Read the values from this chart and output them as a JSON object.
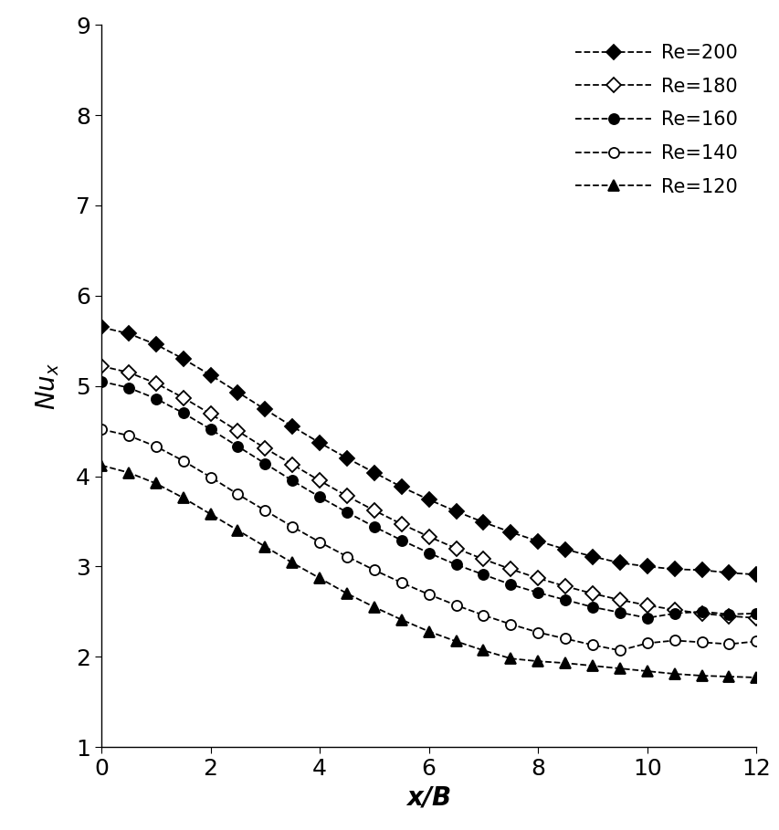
{
  "series": [
    {
      "label": "Re=200",
      "marker": "D",
      "fillstyle": "full",
      "color": "black",
      "x": [
        0,
        0.5,
        1.0,
        1.5,
        2.0,
        2.5,
        3.0,
        3.5,
        4.0,
        4.5,
        5.0,
        5.5,
        6.0,
        6.5,
        7.0,
        7.5,
        8.0,
        8.5,
        9.0,
        9.5,
        10.0,
        10.5,
        11.0,
        11.5,
        12.0
      ],
      "y": [
        5.65,
        5.58,
        5.46,
        5.3,
        5.12,
        4.93,
        4.74,
        4.55,
        4.37,
        4.2,
        4.04,
        3.88,
        3.74,
        3.61,
        3.49,
        3.38,
        3.28,
        3.19,
        3.11,
        3.04,
        3.0,
        2.97,
        2.96,
        2.93,
        2.91
      ]
    },
    {
      "label": "Re=180",
      "marker": "D",
      "fillstyle": "none",
      "color": "black",
      "x": [
        0,
        0.5,
        1.0,
        1.5,
        2.0,
        2.5,
        3.0,
        3.5,
        4.0,
        4.5,
        5.0,
        5.5,
        6.0,
        6.5,
        7.0,
        7.5,
        8.0,
        8.5,
        9.0,
        9.5,
        10.0,
        10.5,
        11.0,
        11.5,
        12.0
      ],
      "y": [
        5.22,
        5.15,
        5.03,
        4.87,
        4.69,
        4.5,
        4.31,
        4.13,
        3.95,
        3.78,
        3.62,
        3.47,
        3.33,
        3.2,
        3.08,
        2.97,
        2.87,
        2.78,
        2.7,
        2.63,
        2.57,
        2.52,
        2.48,
        2.45,
        2.43
      ]
    },
    {
      "label": "Re=160",
      "marker": "o",
      "fillstyle": "full",
      "color": "black",
      "x": [
        0,
        0.5,
        1.0,
        1.5,
        2.0,
        2.5,
        3.0,
        3.5,
        4.0,
        4.5,
        5.0,
        5.5,
        6.0,
        6.5,
        7.0,
        7.5,
        8.0,
        8.5,
        9.0,
        9.5,
        10.0,
        10.5,
        11.0,
        11.5,
        12.0
      ],
      "y": [
        5.05,
        4.98,
        4.86,
        4.7,
        4.52,
        4.33,
        4.14,
        3.95,
        3.77,
        3.6,
        3.44,
        3.29,
        3.15,
        3.02,
        2.91,
        2.8,
        2.71,
        2.63,
        2.55,
        2.49,
        2.43,
        2.48,
        2.5,
        2.47,
        2.48
      ]
    },
    {
      "label": "Re=140",
      "marker": "o",
      "fillstyle": "none",
      "color": "black",
      "x": [
        0,
        0.5,
        1.0,
        1.5,
        2.0,
        2.5,
        3.0,
        3.5,
        4.0,
        4.5,
        5.0,
        5.5,
        6.0,
        6.5,
        7.0,
        7.5,
        8.0,
        8.5,
        9.0,
        9.5,
        10.0,
        10.5,
        11.0,
        11.5,
        12.0
      ],
      "y": [
        4.52,
        4.45,
        4.33,
        4.17,
        3.99,
        3.8,
        3.62,
        3.44,
        3.27,
        3.11,
        2.96,
        2.82,
        2.69,
        2.57,
        2.46,
        2.36,
        2.27,
        2.2,
        2.13,
        2.07,
        2.15,
        2.18,
        2.16,
        2.14,
        2.17
      ]
    },
    {
      "label": "Re=120",
      "marker": "^",
      "fillstyle": "full",
      "color": "black",
      "x": [
        0,
        0.5,
        1.0,
        1.5,
        2.0,
        2.5,
        3.0,
        3.5,
        4.0,
        4.5,
        5.0,
        5.5,
        6.0,
        6.5,
        7.0,
        7.5,
        8.0,
        8.5,
        9.0,
        9.5,
        10.0,
        10.5,
        11.0,
        11.5,
        12.0
      ],
      "y": [
        4.12,
        4.04,
        3.92,
        3.76,
        3.58,
        3.4,
        3.22,
        3.04,
        2.87,
        2.7,
        2.55,
        2.41,
        2.28,
        2.17,
        2.07,
        1.98,
        1.95,
        1.93,
        1.9,
        1.87,
        1.84,
        1.81,
        1.79,
        1.78,
        1.77
      ]
    }
  ],
  "xlim": [
    0,
    12
  ],
  "ylim": [
    1,
    9
  ],
  "xticks": [
    0,
    2,
    4,
    6,
    8,
    10,
    12
  ],
  "yticks": [
    1,
    2,
    3,
    4,
    5,
    6,
    7,
    8,
    9
  ],
  "xlabel": "x/B",
  "ylabel": "Nu_x",
  "background_color": "#ffffff",
  "line_style": "--",
  "line_color": "black",
  "line_width": 1.3,
  "marker_size": 8,
  "legend_loc": "upper right",
  "legend_fontsize": 15,
  "tick_fontsize": 18,
  "label_fontsize": 20
}
